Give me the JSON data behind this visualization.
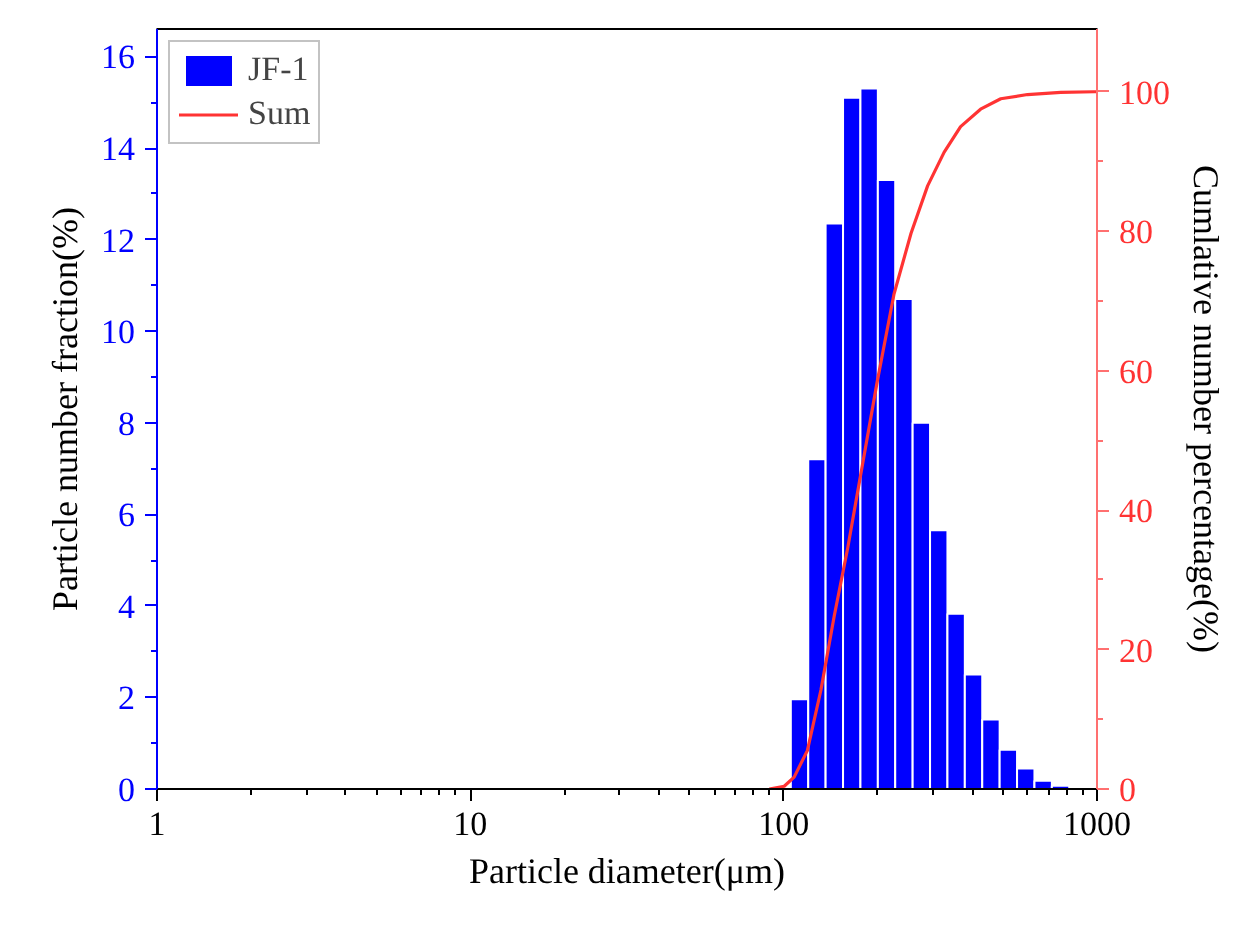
{
  "chart_data": {
    "type": "histogram",
    "xlabel": "Particle diameter(μm)",
    "ylabel": "Particle number fraction(%)",
    "y2label": "Cumlative number percentage(%)",
    "log": "x",
    "xlim": [
      1,
      1000
    ],
    "xticks": [
      1,
      10,
      100,
      1000
    ],
    "ylim": [
      0,
      16.6
    ],
    "yticks": [
      0,
      2,
      4,
      6,
      8,
      10,
      12,
      14,
      16
    ],
    "y2lim": [
      0,
      109
    ],
    "y2ticks": [
      0,
      20,
      40,
      60,
      80,
      100
    ],
    "legend": "top left",
    "grid": false,
    "series": [
      {
        "name": "JF-1",
        "color": "#0000ff",
        "bins": [
          105.4,
          119.8,
          136.1,
          154.7,
          175.8,
          199.8,
          227.0,
          258.0,
          293.2,
          333.2,
          378.6,
          430.3,
          489.0,
          555.7,
          631.5,
          717.6,
          815.5,
          926.7
        ],
        "values": [
          1.96,
          7.2,
          12.35,
          15.1,
          15.3,
          13.3,
          10.7,
          8.0,
          5.65,
          3.83,
          2.5,
          1.52,
          0.86,
          0.45,
          0.18,
          0.07,
          null
        ]
      },
      {
        "name": "Sum",
        "type": "line",
        "axis": "y2",
        "color": "#ff3333",
        "line_style": "solid",
        "x": [
          90,
          100.4,
          108,
          119,
          131.5,
          145,
          160,
          176,
          199,
          225,
          255,
          288,
          325,
          367,
          425,
          493,
          600,
          766,
          980,
          1000
        ],
        "values": [
          0,
          0.4,
          1.7,
          5.5,
          14.2,
          24.8,
          34.5,
          45,
          58.5,
          71,
          79.7,
          86.5,
          91.3,
          95,
          97.5,
          99,
          99.6,
          99.9,
          100,
          100
        ]
      }
    ]
  }
}
